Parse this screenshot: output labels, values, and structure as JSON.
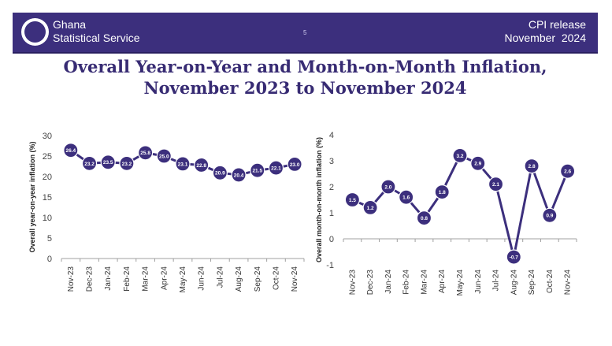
{
  "header": {
    "org_line1": "Ghana",
    "org_line2": "Statistical Service",
    "page_number": "5",
    "release_line1": "CPI release",
    "release_line2": "November  2024"
  },
  "title": {
    "line1": "Overall Year-on-Year and Month-on-Month Inflation,",
    "line2": "November 2023 to November 2024"
  },
  "colors": {
    "header_bg": "#3c2f7d",
    "line": "#3c2f7d",
    "title": "#372b73"
  },
  "chart_data": [
    {
      "type": "line",
      "title": "",
      "xlabel": "",
      "ylabel": "Overall year-on-year inflation (%)",
      "categories": [
        "Nov-23",
        "Dec-23",
        "Jan-24",
        "Feb-24",
        "Mar-24",
        "Apr-24",
        "May-24",
        "Jun-24",
        "Jul-24",
        "Aug-24",
        "Sep-24",
        "Oct-24",
        "Nov-24"
      ],
      "values": [
        26.4,
        23.2,
        23.5,
        23.2,
        25.8,
        25.0,
        23.1,
        22.8,
        20.9,
        20.4,
        21.5,
        22.1,
        23.0
      ],
      "labels": [
        "26.4",
        "23.2",
        "23.5",
        "23.2",
        "25.8",
        "25.0",
        "23.1",
        "22.8",
        "20.9",
        "20.4",
        "21.5",
        "22.1",
        "23.0"
      ],
      "ylim": [
        0,
        30
      ],
      "yticks": [
        0,
        5,
        10,
        15,
        20,
        25,
        30
      ],
      "grid": false,
      "legend": "none"
    },
    {
      "type": "line",
      "title": "",
      "xlabel": "",
      "ylabel": "Overall month-on-month inflation (%)",
      "categories": [
        "Nov-23",
        "Dec-23",
        "Jan-24",
        "Feb-24",
        "Mar-24",
        "Apr-24",
        "May-24",
        "Jun-24",
        "Jul-24",
        "Aug-24",
        "Sep-24",
        "Oct-24",
        "Nov-24"
      ],
      "values": [
        1.5,
        1.2,
        2.0,
        1.6,
        0.8,
        1.8,
        3.2,
        2.9,
        2.1,
        -0.7,
        2.8,
        0.9,
        2.6
      ],
      "labels": [
        "1.5",
        "1.2",
        "2.0",
        "1.6",
        "0.8",
        "1.8",
        "3.2",
        "2.9",
        "2.1",
        "-0.7",
        "2.8",
        "0.9",
        "2.6"
      ],
      "ylim": [
        -1,
        4
      ],
      "yticks": [
        -1,
        0,
        1,
        2,
        3,
        4
      ],
      "grid": false,
      "legend": "none"
    }
  ]
}
